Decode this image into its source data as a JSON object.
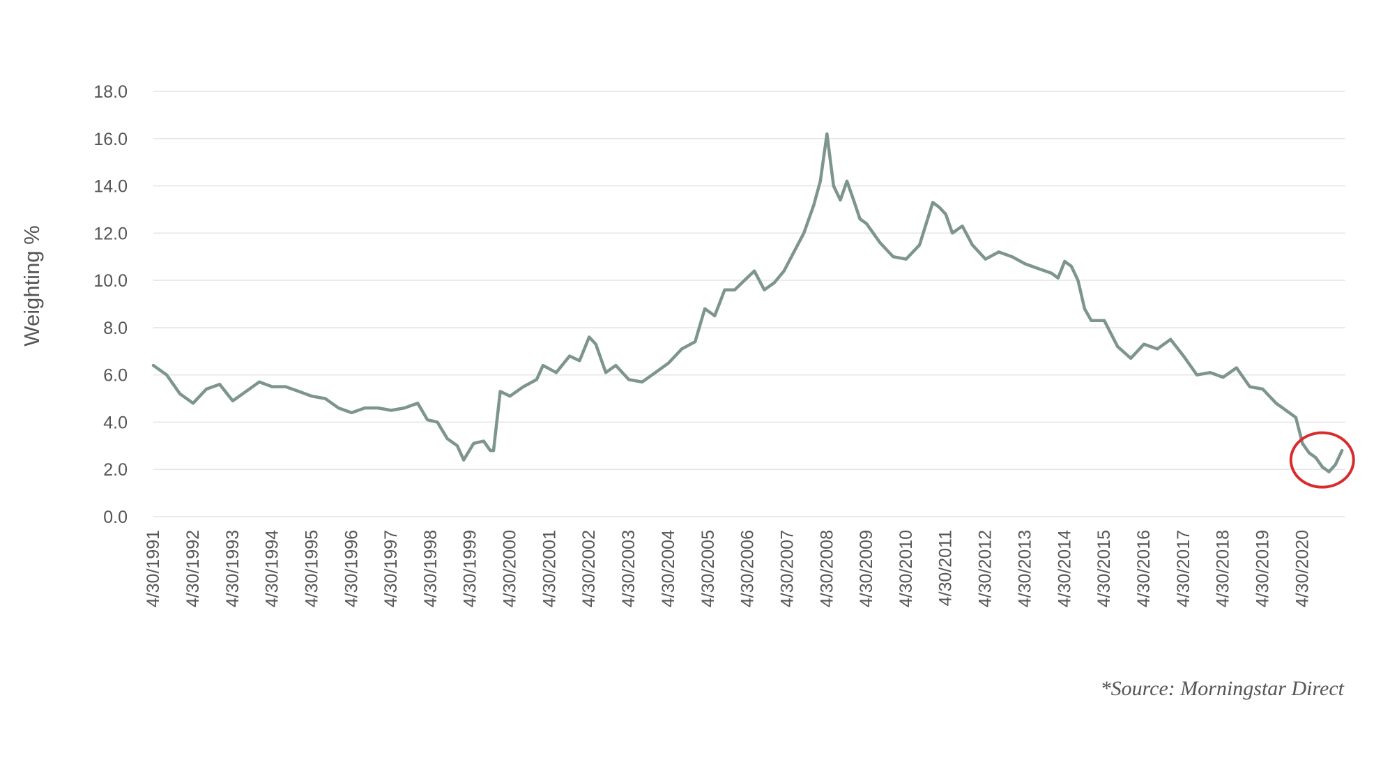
{
  "chart_data": {
    "type": "line",
    "title": "",
    "xlabel": "",
    "ylabel": "Weighting %",
    "ylim": [
      0,
      18
    ],
    "y_ticks": [
      "0.0",
      "2.0",
      "4.0",
      "6.0",
      "8.0",
      "10.0",
      "12.0",
      "14.0",
      "16.0",
      "18.0"
    ],
    "x_ticks": [
      "4/30/1991",
      "4/30/1992",
      "4/30/1993",
      "4/30/1994",
      "4/30/1995",
      "4/30/1996",
      "4/30/1997",
      "4/30/1998",
      "4/30/1999",
      "4/30/2000",
      "4/30/2001",
      "4/30/2002",
      "4/30/2003",
      "4/30/2004",
      "4/30/2005",
      "4/30/2006",
      "4/30/2007",
      "4/30/2008",
      "4/30/2009",
      "4/30/2010",
      "4/30/2011",
      "4/30/2012",
      "4/30/2013",
      "4/30/2014",
      "4/30/2015",
      "4/30/2016",
      "4/30/2017",
      "4/30/2018",
      "4/30/2019",
      "4/30/2020"
    ],
    "xlim": [
      "1991-04-30",
      "2021-05-31"
    ],
    "grid": "horizontal",
    "legend": "none",
    "line_color": "#7d958e",
    "highlight_color": "#d92b2b",
    "highlight": {
      "x_from": "2020-04-30",
      "x_to": "2021-04-30",
      "y_from": 1.9,
      "y_to": 2.9
    },
    "series": [
      {
        "x": [
          "1991-04-30",
          "1991-08-31",
          "1991-12-31",
          "1992-04-30",
          "1992-08-31",
          "1992-12-31",
          "1993-04-30",
          "1993-08-31",
          "1993-12-31",
          "1994-04-30",
          "1994-08-31",
          "1994-12-31",
          "1995-04-30",
          "1995-08-31",
          "1995-12-31",
          "1996-04-30",
          "1996-08-31",
          "1996-12-31",
          "1997-04-30",
          "1997-08-31",
          "1997-12-31",
          "1998-03-31",
          "1998-06-30",
          "1998-09-30",
          "1998-12-31",
          "1999-02-28",
          "1999-05-31",
          "1999-08-31",
          "1999-10-31",
          "1999-11-30",
          "2000-01-31",
          "2000-04-30",
          "2000-08-31",
          "2000-12-31",
          "2001-02-28",
          "2001-06-30",
          "2001-10-31",
          "2002-01-31",
          "2002-04-30",
          "2002-06-30",
          "2002-09-30",
          "2002-12-31",
          "2003-04-30",
          "2003-08-31",
          "2003-12-31",
          "2004-04-30",
          "2004-08-31",
          "2004-12-31",
          "2005-03-31",
          "2005-06-30",
          "2005-09-30",
          "2005-12-31",
          "2006-03-31",
          "2006-06-30",
          "2006-09-30",
          "2006-12-31",
          "2007-03-31",
          "2007-06-30",
          "2007-09-30",
          "2007-12-31",
          "2008-02-29",
          "2008-04-30",
          "2008-06-30",
          "2008-08-31",
          "2008-10-31",
          "2008-12-31",
          "2009-02-28",
          "2009-04-30",
          "2009-08-31",
          "2009-12-31",
          "2010-04-30",
          "2010-08-31",
          "2010-12-31",
          "2011-02-28",
          "2011-04-30",
          "2011-06-30",
          "2011-09-30",
          "2011-12-31",
          "2012-04-30",
          "2012-08-31",
          "2012-12-31",
          "2013-04-30",
          "2013-08-31",
          "2013-12-31",
          "2014-02-28",
          "2014-04-30",
          "2014-06-30",
          "2014-08-31",
          "2014-10-31",
          "2014-12-31",
          "2015-04-30",
          "2015-08-31",
          "2015-12-31",
          "2016-04-30",
          "2016-08-31",
          "2016-12-31",
          "2017-04-30",
          "2017-08-31",
          "2017-12-31",
          "2018-04-30",
          "2018-08-31",
          "2018-12-31",
          "2019-04-30",
          "2019-08-31",
          "2019-12-31",
          "2020-02-29",
          "2020-04-30",
          "2020-06-30",
          "2020-08-31",
          "2020-10-31",
          "2020-12-31",
          "2021-02-28",
          "2021-04-30"
        ],
        "y": [
          6.4,
          6.0,
          5.2,
          4.8,
          5.4,
          5.6,
          4.9,
          5.3,
          5.7,
          5.5,
          5.5,
          5.3,
          5.1,
          5.0,
          4.6,
          4.4,
          4.6,
          4.6,
          4.5,
          4.6,
          4.8,
          4.1,
          4.0,
          3.3,
          3.0,
          2.4,
          3.1,
          3.2,
          2.8,
          2.8,
          5.3,
          5.1,
          5.5,
          5.8,
          6.4,
          6.1,
          6.8,
          6.6,
          7.6,
          7.3,
          6.1,
          6.4,
          5.8,
          5.7,
          6.1,
          6.5,
          7.1,
          7.4,
          8.8,
          8.5,
          9.6,
          9.6,
          10.0,
          10.4,
          9.6,
          9.9,
          10.4,
          11.2,
          12.0,
          13.2,
          14.2,
          16.2,
          14.0,
          13.4,
          14.2,
          13.4,
          12.6,
          12.4,
          11.6,
          11.0,
          10.9,
          11.5,
          13.3,
          13.1,
          12.8,
          12.0,
          12.3,
          11.5,
          10.9,
          11.2,
          11.0,
          10.7,
          10.5,
          10.3,
          10.1,
          10.8,
          10.6,
          10.0,
          8.8,
          8.3,
          8.3,
          7.2,
          6.7,
          7.3,
          7.1,
          7.5,
          6.8,
          6.0,
          6.1,
          5.9,
          6.3,
          5.5,
          5.4,
          4.8,
          4.4,
          4.2,
          3.1,
          2.7,
          2.5,
          2.1,
          1.9,
          2.2,
          2.8
        ]
      }
    ]
  },
  "source_note": "*Source: Morningstar Direct"
}
